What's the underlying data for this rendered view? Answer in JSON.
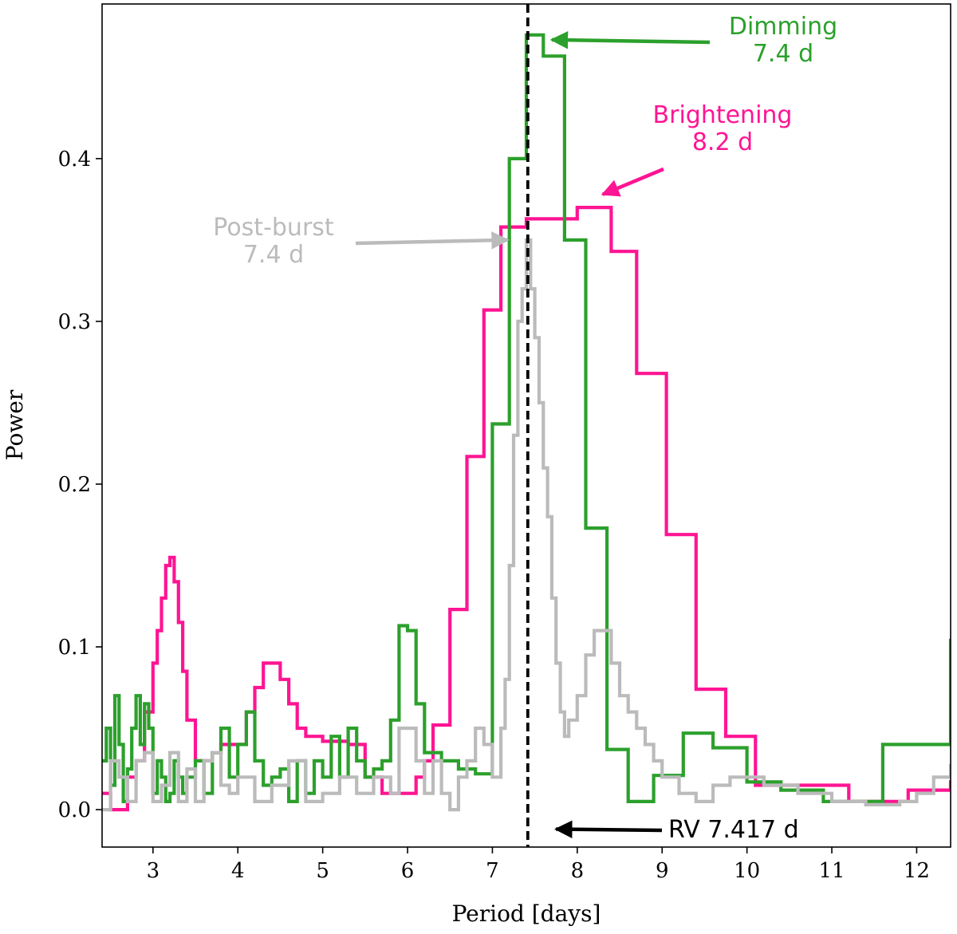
{
  "chart_data": {
    "type": "line",
    "title": "",
    "xlabel": "Period [days]",
    "ylabel": "Power",
    "xlim": [
      2.4,
      12.4
    ],
    "ylim": [
      -0.023,
      0.495
    ],
    "xticks": [
      3,
      4,
      5,
      6,
      7,
      8,
      9,
      10,
      11,
      12
    ],
    "yticks": [
      0.0,
      0.1,
      0.2,
      0.3,
      0.4
    ],
    "ytick_labels": [
      "0.0",
      "0.1",
      "0.2",
      "0.3",
      "0.4"
    ],
    "grid": false,
    "series": [
      {
        "key": "brightening",
        "color": "#ff1493",
        "step": true,
        "x": [
          2.4,
          2.5,
          2.6,
          2.7,
          2.8,
          2.9,
          3.0,
          3.05,
          3.1,
          3.15,
          3.2,
          3.25,
          3.3,
          3.35,
          3.4,
          3.5,
          3.6,
          3.7,
          3.8,
          3.9,
          4.0,
          4.1,
          4.2,
          4.3,
          4.4,
          4.5,
          4.6,
          4.7,
          4.8,
          5.0,
          5.3,
          5.5,
          5.7,
          5.9,
          6.1,
          6.2,
          6.3,
          6.5,
          6.7,
          6.9,
          7.1,
          7.4,
          7.7,
          8.0,
          8.4,
          8.7,
          9.05,
          9.4,
          9.75,
          10.1,
          10.4,
          11.2,
          11.9,
          12.4
        ],
        "y": [
          0.01,
          0.0,
          0.0,
          0.02,
          0.03,
          0.06,
          0.09,
          0.11,
          0.13,
          0.15,
          0.155,
          0.14,
          0.115,
          0.085,
          0.055,
          0.03,
          0.03,
          0.035,
          0.04,
          0.04,
          0.04,
          0.06,
          0.075,
          0.09,
          0.09,
          0.08,
          0.065,
          0.05,
          0.045,
          0.042,
          0.04,
          0.02,
          0.01,
          0.01,
          0.02,
          0.03,
          0.052,
          0.123,
          0.217,
          0.307,
          0.358,
          0.363,
          0.363,
          0.37,
          0.343,
          0.268,
          0.169,
          0.074,
          0.045,
          0.015,
          0.015,
          0.005,
          0.012,
          0.018
        ]
      },
      {
        "key": "dimming",
        "color": "#2ca02c",
        "step": true,
        "x": [
          2.4,
          2.45,
          2.5,
          2.55,
          2.6,
          2.65,
          2.7,
          2.75,
          2.8,
          2.85,
          2.9,
          2.95,
          3.0,
          3.05,
          3.1,
          3.15,
          3.2,
          3.25,
          3.3,
          3.35,
          3.4,
          3.5,
          3.6,
          3.7,
          3.8,
          3.9,
          4.0,
          4.1,
          4.2,
          4.3,
          4.4,
          4.5,
          4.6,
          4.7,
          4.8,
          4.9,
          5.0,
          5.1,
          5.2,
          5.3,
          5.4,
          5.5,
          5.6,
          5.7,
          5.8,
          5.9,
          6.0,
          6.1,
          6.2,
          6.4,
          6.6,
          6.8,
          7.0,
          7.2,
          7.4,
          7.6,
          7.85,
          8.1,
          8.35,
          8.6,
          8.9,
          9.25,
          9.6,
          10.0,
          10.4,
          10.9,
          11.6,
          12.4
        ],
        "y": [
          0.03,
          0.05,
          0.015,
          0.07,
          0.04,
          0.005,
          0.025,
          0.05,
          0.07,
          0.04,
          0.065,
          0.05,
          0.01,
          0.03,
          0.02,
          0.005,
          0.01,
          0.03,
          0.02,
          0.01,
          0.02,
          0.03,
          0.01,
          0.035,
          0.05,
          0.02,
          0.04,
          0.06,
          0.03,
          0.015,
          0.02,
          0.025,
          0.005,
          0.03,
          0.01,
          0.03,
          0.02,
          0.045,
          0.02,
          0.05,
          0.03,
          0.02,
          0.025,
          0.03,
          0.055,
          0.113,
          0.11,
          0.065,
          0.035,
          0.03,
          0.025,
          0.022,
          0.237,
          0.4,
          0.476,
          0.463,
          0.35,
          0.173,
          0.037,
          0.005,
          0.021,
          0.047,
          0.038,
          0.017,
          0.012,
          0.005,
          0.04,
          0.105
        ]
      },
      {
        "key": "post_burst",
        "color": "#bbbbbb",
        "step": true,
        "x": [
          2.4,
          2.5,
          2.6,
          2.7,
          2.8,
          2.9,
          3.0,
          3.1,
          3.2,
          3.3,
          3.4,
          3.5,
          3.6,
          3.7,
          3.8,
          3.9,
          4.0,
          4.2,
          4.4,
          4.6,
          4.8,
          5.0,
          5.2,
          5.4,
          5.6,
          5.8,
          5.9,
          6.0,
          6.1,
          6.2,
          6.3,
          6.4,
          6.5,
          6.6,
          6.7,
          6.8,
          6.9,
          7.0,
          7.1,
          7.15,
          7.2,
          7.25,
          7.3,
          7.35,
          7.4,
          7.45,
          7.5,
          7.55,
          7.6,
          7.65,
          7.7,
          7.75,
          7.8,
          7.85,
          7.9,
          8.0,
          8.1,
          8.2,
          8.3,
          8.4,
          8.5,
          8.6,
          8.7,
          8.8,
          8.9,
          9.0,
          9.1,
          9.2,
          9.4,
          9.6,
          9.8,
          10.0,
          10.2,
          10.4,
          10.6,
          10.8,
          11.0,
          11.2,
          11.4,
          11.6,
          11.8,
          12.0,
          12.2,
          12.4
        ],
        "y": [
          0.0,
          0.03,
          0.02,
          0.005,
          0.03,
          0.035,
          0.005,
          0.015,
          0.035,
          0.005,
          0.025,
          0.005,
          0.03,
          0.035,
          0.015,
          0.01,
          0.02,
          0.005,
          0.015,
          0.03,
          0.005,
          0.01,
          0.02,
          0.01,
          0.02,
          0.01,
          0.05,
          0.05,
          0.03,
          0.01,
          0.03,
          0.01,
          0.0,
          0.02,
          0.03,
          0.05,
          0.04,
          0.02,
          0.05,
          0.08,
          0.15,
          0.23,
          0.3,
          0.32,
          0.35,
          0.32,
          0.29,
          0.25,
          0.21,
          0.18,
          0.13,
          0.09,
          0.06,
          0.045,
          0.055,
          0.07,
          0.095,
          0.11,
          0.11,
          0.09,
          0.07,
          0.06,
          0.05,
          0.04,
          0.03,
          0.02,
          0.02,
          0.01,
          0.005,
          0.015,
          0.02,
          0.02,
          0.015,
          0.015,
          0.01,
          0.01,
          0.005,
          0.005,
          0.003,
          0.003,
          0.005,
          0.01,
          0.02,
          0.028
        ]
      }
    ],
    "vline": {
      "x": 7.417,
      "color": "#000000",
      "style": "dashed"
    },
    "annotations": [
      {
        "key": "dimming",
        "lines": [
          "Dimming",
          "7.4 d"
        ],
        "color": "#2ca02c",
        "arrow_to": [
          7.7,
          0.473
        ]
      },
      {
        "key": "brightening",
        "lines": [
          "Brightening",
          "8.2 d"
        ],
        "color": "#ff1493",
        "arrow_to": [
          8.3,
          0.378
        ]
      },
      {
        "key": "post_burst",
        "lines": [
          "Post-burst",
          "7.4 d"
        ],
        "color": "#bbbbbb",
        "arrow_to": [
          7.18,
          0.35
        ]
      },
      {
        "key": "rv",
        "lines": [
          "RV 7.417 d"
        ],
        "color": "#000000",
        "arrow_to": [
          7.75,
          -0.012
        ]
      }
    ]
  }
}
